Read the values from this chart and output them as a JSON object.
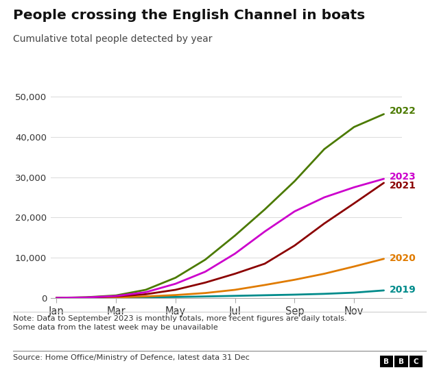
{
  "title": "People crossing the English Channel in boats",
  "subtitle": "Cumulative total people detected by year",
  "note": "Note: Data to September 2023 is monthly totals, more recent figures are daily totals.\nSome data from the latest week may be unavailable",
  "source": "Source: Home Office/Ministry of Defence, latest data 31 Dec",
  "x_tick_labels": [
    "Jan",
    "Mar",
    "May",
    "Jul",
    "Sep",
    "Nov"
  ],
  "x_tick_positions": [
    0,
    2,
    4,
    6,
    8,
    10
  ],
  "ylim": [
    0,
    52000
  ],
  "ytick_labels": [
    "0",
    "10,000",
    "20,000",
    "30,000",
    "40,000",
    "50,000"
  ],
  "series": {
    "2019": {
      "color": "#008B8B",
      "label_color": "#008B8B",
      "data_x": [
        0,
        1,
        2,
        3,
        4,
        5,
        6,
        7,
        8,
        9,
        10,
        11
      ],
      "data_y": [
        0,
        30,
        80,
        150,
        220,
        350,
        500,
        650,
        800,
        1000,
        1300,
        1850
      ]
    },
    "2020": {
      "color": "#E07B00",
      "label_color": "#E07B00",
      "data_x": [
        0,
        1,
        2,
        3,
        4,
        5,
        6,
        7,
        8,
        9,
        10,
        11
      ],
      "data_y": [
        0,
        30,
        120,
        350,
        700,
        1200,
        2000,
        3200,
        4500,
        6000,
        7800,
        9700
      ]
    },
    "2021": {
      "color": "#8B0000",
      "label_color": "#8B0000",
      "data_x": [
        0,
        1,
        2,
        3,
        4,
        5,
        6,
        7,
        8,
        9,
        10,
        11
      ],
      "data_y": [
        0,
        80,
        350,
        900,
        2000,
        3800,
        6000,
        8500,
        13000,
        18500,
        23500,
        28600
      ]
    },
    "2022": {
      "color": "#4B7A00",
      "label_color": "#4B7A00",
      "data_x": [
        0,
        1,
        2,
        3,
        4,
        5,
        6,
        7,
        8,
        9,
        10,
        11
      ],
      "data_y": [
        0,
        150,
        600,
        2000,
        5000,
        9500,
        15500,
        22000,
        29000,
        37000,
        42500,
        45700
      ]
    },
    "2023": {
      "color": "#CC00CC",
      "label_color": "#CC00CC",
      "data_x": [
        0,
        1,
        2,
        3,
        4,
        5,
        6,
        7,
        8,
        9,
        10,
        11
      ],
      "data_y": [
        0,
        100,
        450,
        1400,
        3500,
        6500,
        11000,
        16500,
        21500,
        25000,
        27500,
        29600
      ]
    }
  },
  "background_color": "#ffffff",
  "grid_color": "#dddddd",
  "line_width": 2.0,
  "fig_width": 6.4,
  "fig_height": 5.4,
  "dpi": 100
}
